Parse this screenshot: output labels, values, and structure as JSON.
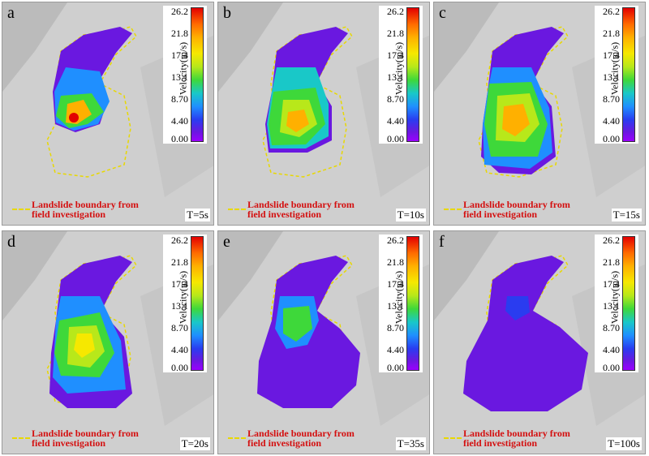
{
  "panels": [
    {
      "label": "a",
      "time": "T=5s"
    },
    {
      "label": "b",
      "time": "T=10s"
    },
    {
      "label": "c",
      "time": "T=15s"
    },
    {
      "label": "d",
      "time": "T=20s"
    },
    {
      "label": "e",
      "time": "T=35s"
    },
    {
      "label": "f",
      "time": "T=100s"
    }
  ],
  "colorbar": {
    "title": "Velocity(m/s)",
    "ticks": [
      "26.2",
      "21.8",
      "17.4",
      "13.1",
      "8.70",
      "4.40",
      "0.00"
    ]
  },
  "legend": {
    "line1": "Landslide boundary from",
    "line2": "field investigation"
  },
  "colors": {
    "boundary": "#e8d800",
    "legend_text": "#d41010",
    "max_velocity": "#e30000",
    "min_velocity": "#9a00ff"
  }
}
